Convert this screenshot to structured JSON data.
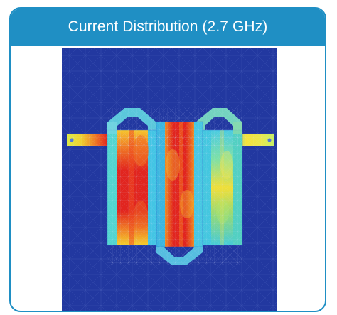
{
  "card": {
    "title": "Current Distribution (2.7 GHz)"
  },
  "figure": {
    "kind": "simulation-heatmap",
    "subject": "current distribution",
    "colormap": [
      "#1f3fa5",
      "#33a8e8",
      "#6bd98a",
      "#f5e23a",
      "#f07a25",
      "#e1251f"
    ],
    "colors": {
      "background": "#2238a0",
      "mesh": "#7a8fd8",
      "border": "#1f8fc4"
    }
  }
}
